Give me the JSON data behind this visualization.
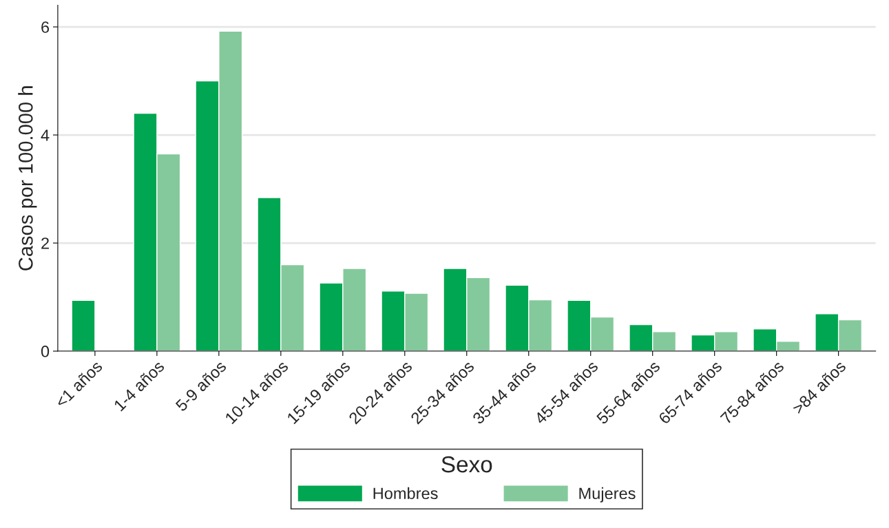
{
  "chart_data": {
    "type": "bar",
    "ylabel": "Casos por 100.000 h",
    "legend_title": "Sexo",
    "categories": [
      "<1 años",
      "1-4 años",
      "5-9 años",
      "10-14 años",
      "15-19 años",
      "20-24 años",
      "25-34 años",
      "35-44 años",
      "45-54 años",
      "55-64 años",
      "65-74 años",
      "75-84 años",
      ">84 años"
    ],
    "series": [
      {
        "name": "Hombres",
        "color": "#00a651",
        "values": [
          0.94,
          4.4,
          5.0,
          2.84,
          1.26,
          1.11,
          1.53,
          1.22,
          0.94,
          0.49,
          0.3,
          0.41,
          0.69
        ]
      },
      {
        "name": "Mujeres",
        "color": "#84c99b",
        "values": [
          null,
          3.65,
          5.92,
          1.6,
          1.53,
          1.07,
          1.36,
          0.95,
          0.63,
          0.36,
          0.36,
          0.18,
          0.58
        ]
      }
    ],
    "ylim": [
      0,
      6.4
    ],
    "yticks": [
      0,
      2,
      4,
      6
    ],
    "grid": "y",
    "legend": "bottom"
  }
}
